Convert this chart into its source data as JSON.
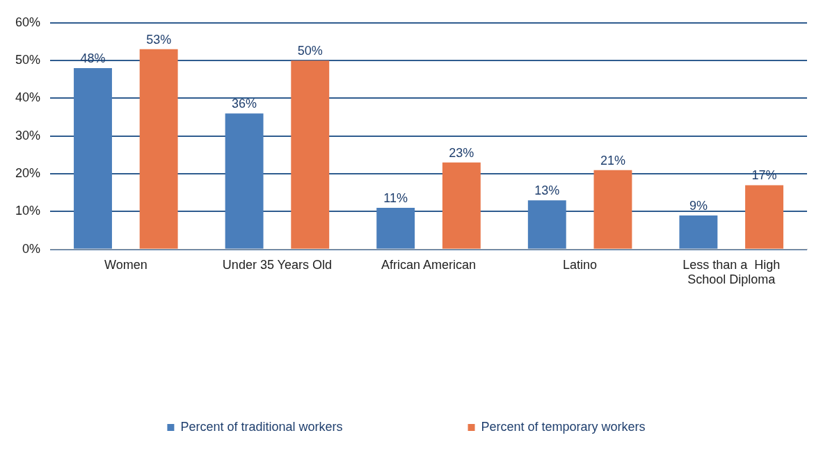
{
  "chart_data": {
    "type": "bar",
    "categories": [
      "Women",
      "Under 35 Years Old",
      "African American",
      "Latino",
      "Less than a  High School Diploma"
    ],
    "series": [
      {
        "name": "Percent of traditional workers",
        "color": "#4a7ebb",
        "values": [
          48,
          36,
          11,
          13,
          9
        ],
        "value_labels": [
          "48%",
          "36%",
          "11%",
          "13%",
          "9%"
        ]
      },
      {
        "name": "Percent of temporary workers",
        "color": "#e8774a",
        "values": [
          53,
          50,
          23,
          21,
          17
        ],
        "value_labels": [
          "53%",
          "50%",
          "23%",
          "21%",
          "17%"
        ]
      }
    ],
    "ylim": [
      0,
      60
    ],
    "yticks": [
      {
        "value": 0,
        "label": "0%"
      },
      {
        "value": 10,
        "label": "10%"
      },
      {
        "value": 20,
        "label": "20%"
      },
      {
        "value": 30,
        "label": "30%"
      },
      {
        "value": 40,
        "label": "40%"
      },
      {
        "value": 50,
        "label": "50%"
      },
      {
        "value": 60,
        "label": "60%"
      }
    ],
    "grid": "y",
    "legend": "bottom"
  }
}
